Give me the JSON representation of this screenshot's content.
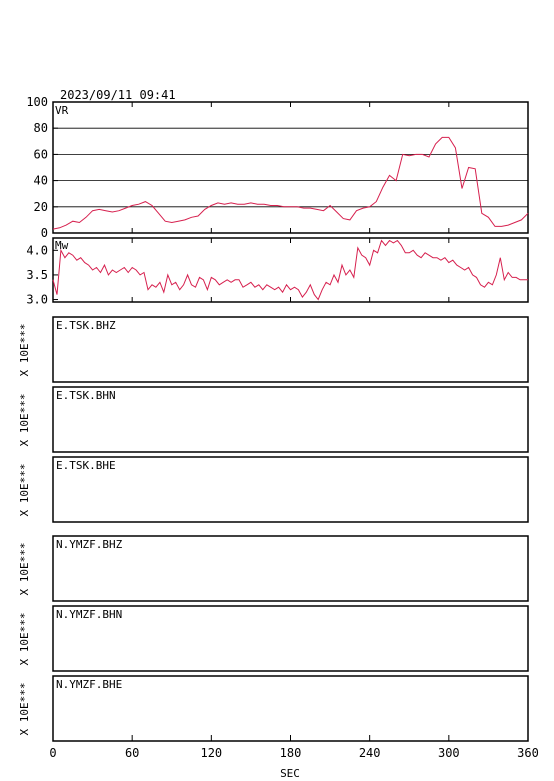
{
  "header": {
    "datetime": "2023/09/11 09:41"
  },
  "chart_data": [
    {
      "type": "line",
      "label": "VR",
      "ylim": [
        0,
        100
      ],
      "yticks": [
        0,
        20,
        40,
        60,
        80,
        100
      ],
      "grid": true,
      "color": "#d6204e",
      "x": [
        0,
        5,
        10,
        15,
        20,
        25,
        30,
        35,
        40,
        45,
        50,
        55,
        60,
        65,
        70,
        75,
        80,
        85,
        90,
        95,
        100,
        105,
        110,
        115,
        120,
        125,
        130,
        135,
        140,
        145,
        150,
        155,
        160,
        165,
        170,
        175,
        180,
        185,
        190,
        195,
        200,
        205,
        210,
        215,
        220,
        225,
        230,
        235,
        240,
        245,
        250,
        255,
        260,
        265,
        270,
        275,
        280,
        285,
        290,
        295,
        300,
        305,
        310,
        315,
        320,
        325,
        330,
        335,
        340,
        345,
        350,
        355,
        360
      ],
      "values": [
        3,
        4,
        6,
        9,
        8,
        12,
        17,
        18,
        17,
        16,
        17,
        19,
        21,
        22,
        24,
        21,
        15,
        9,
        8,
        9,
        10,
        12,
        13,
        18,
        21,
        23,
        22,
        23,
        22,
        22,
        23,
        22,
        22,
        21,
        21,
        20,
        20,
        20,
        19,
        19,
        18,
        17,
        21,
        16,
        11,
        10,
        17,
        19,
        20,
        24,
        35,
        44,
        40,
        60,
        59,
        60,
        60,
        58,
        68,
        73,
        73,
        65,
        34,
        50,
        49,
        15,
        12,
        5,
        5,
        6,
        8,
        10,
        15
      ]
    },
    {
      "type": "line",
      "label": "Mw",
      "ylim": [
        2.95,
        4.25
      ],
      "yticks": [
        3.0,
        3.5,
        4.0
      ],
      "yticklabels": [
        "3.0",
        "3.5",
        "4.0"
      ],
      "color": "#d6204e",
      "x": [
        0,
        3,
        6,
        9,
        12,
        15,
        18,
        21,
        24,
        27,
        30,
        33,
        36,
        39,
        42,
        45,
        48,
        51,
        54,
        57,
        60,
        63,
        66,
        69,
        72,
        75,
        78,
        81,
        84,
        87,
        90,
        93,
        96,
        99,
        102,
        105,
        108,
        111,
        114,
        117,
        120,
        123,
        126,
        129,
        132,
        135,
        138,
        141,
        144,
        147,
        150,
        153,
        156,
        159,
        162,
        165,
        168,
        171,
        174,
        177,
        180,
        183,
        186,
        189,
        192,
        195,
        198,
        201,
        204,
        207,
        210,
        213,
        216,
        219,
        222,
        225,
        228,
        231,
        234,
        237,
        240,
        243,
        246,
        249,
        252,
        255,
        258,
        261,
        264,
        267,
        270,
        273,
        276,
        279,
        282,
        285,
        288,
        291,
        294,
        297,
        300,
        303,
        306,
        309,
        312,
        315,
        318,
        321,
        324,
        327,
        330,
        333,
        336,
        339,
        342,
        345,
        348,
        351,
        354,
        357,
        360
      ],
      "values": [
        3.4,
        3.1,
        4.0,
        3.85,
        3.95,
        3.9,
        3.8,
        3.85,
        3.75,
        3.7,
        3.6,
        3.65,
        3.55,
        3.7,
        3.5,
        3.6,
        3.55,
        3.6,
        3.65,
        3.55,
        3.65,
        3.6,
        3.5,
        3.55,
        3.2,
        3.3,
        3.25,
        3.35,
        3.15,
        3.5,
        3.3,
        3.35,
        3.2,
        3.3,
        3.5,
        3.3,
        3.25,
        3.45,
        3.4,
        3.2,
        3.45,
        3.4,
        3.3,
        3.35,
        3.4,
        3.35,
        3.4,
        3.4,
        3.25,
        3.3,
        3.35,
        3.25,
        3.3,
        3.2,
        3.3,
        3.25,
        3.2,
        3.25,
        3.15,
        3.3,
        3.2,
        3.25,
        3.2,
        3.05,
        3.15,
        3.3,
        3.1,
        3.0,
        3.2,
        3.35,
        3.3,
        3.5,
        3.35,
        3.7,
        3.5,
        3.6,
        3.45,
        4.05,
        3.9,
        3.85,
        3.7,
        4.0,
        3.95,
        4.2,
        4.1,
        4.2,
        4.15,
        4.2,
        4.1,
        3.95,
        3.95,
        4.0,
        3.9,
        3.85,
        3.95,
        3.9,
        3.85,
        3.85,
        3.8,
        3.85,
        3.75,
        3.8,
        3.7,
        3.65,
        3.6,
        3.65,
        3.5,
        3.45,
        3.3,
        3.25,
        3.35,
        3.3,
        3.5,
        3.85,
        3.4,
        3.55,
        3.45,
        3.45,
        3.4,
        3.4,
        3.4
      ]
    }
  ],
  "stations": [
    {
      "name": "E.TSK.BHZ",
      "ylabel": "X 10E***"
    },
    {
      "name": "E.TSK.BHN",
      "ylabel": "X 10E***"
    },
    {
      "name": "E.TSK.BHE",
      "ylabel": "X 10E***"
    },
    {
      "name": "N.YMZF.BHZ",
      "ylabel": "X 10E***"
    },
    {
      "name": "N.YMZF.BHN",
      "ylabel": "X 10E***"
    },
    {
      "name": "N.YMZF.BHE",
      "ylabel": "X 10E***"
    }
  ],
  "xaxis": {
    "label": "SEC",
    "xlim": [
      0,
      360
    ],
    "ticks": [
      0,
      60,
      120,
      180,
      240,
      300,
      360
    ],
    "ticklabels": [
      "0",
      "60",
      "120",
      "180",
      "240",
      "300",
      "360"
    ]
  }
}
